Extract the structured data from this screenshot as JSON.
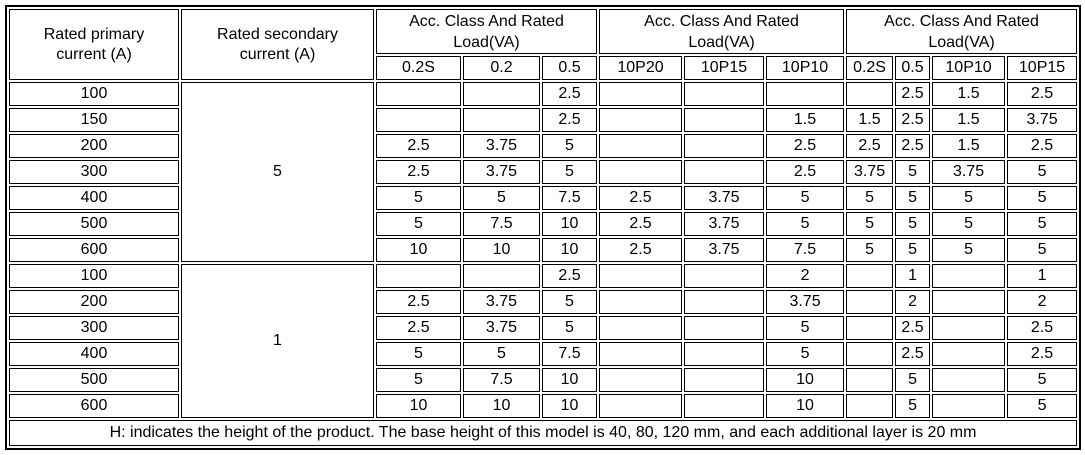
{
  "colors": {
    "border": "#000000",
    "text": "#000000",
    "background": "#ffffff"
  },
  "table": {
    "header": {
      "col_primary": "Rated primary current (A)",
      "col_secondary": "Rated secondary current (A)",
      "groups": [
        {
          "label": "Acc. Class And Rated Load(VA)",
          "subcols": [
            "0.2S",
            "0.2",
            "0.5"
          ]
        },
        {
          "label": "Acc. Class And Rated Load(VA)",
          "subcols": [
            "10P20",
            "10P15",
            "10P10"
          ]
        },
        {
          "label": "Acc. Class And Rated Load(VA)",
          "subcols": [
            "0.2S",
            "0.5",
            "10P10",
            "10P15"
          ]
        }
      ]
    },
    "sections": [
      {
        "secondary_current": "5",
        "rows": [
          {
            "primary": "100",
            "values": [
              "",
              "",
              "2.5",
              "",
              "",
              "",
              "",
              "2.5",
              "1.5",
              "2.5"
            ]
          },
          {
            "primary": "150",
            "values": [
              "",
              "",
              "2.5",
              "",
              "",
              "1.5",
              "1.5",
              "2.5",
              "1.5",
              "3.75"
            ]
          },
          {
            "primary": "200",
            "values": [
              "2.5",
              "3.75",
              "5",
              "",
              "",
              "2.5",
              "2.5",
              "2.5",
              "1.5",
              "2.5"
            ]
          },
          {
            "primary": "300",
            "values": [
              "2.5",
              "3.75",
              "5",
              "",
              "",
              "2.5",
              "3.75",
              "5",
              "3.75",
              "5"
            ]
          },
          {
            "primary": "400",
            "values": [
              "5",
              "5",
              "7.5",
              "2.5",
              "3.75",
              "5",
              "5",
              "5",
              "5",
              "5"
            ]
          },
          {
            "primary": "500",
            "values": [
              "5",
              "7.5",
              "10",
              "2.5",
              "3.75",
              "5",
              "5",
              "5",
              "5",
              "5"
            ]
          },
          {
            "primary": "600",
            "values": [
              "10",
              "10",
              "10",
              "2.5",
              "3.75",
              "7.5",
              "5",
              "5",
              "5",
              "5"
            ]
          }
        ]
      },
      {
        "secondary_current": "1",
        "rows": [
          {
            "primary": "100",
            "values": [
              "",
              "",
              "2.5",
              "",
              "",
              "2",
              "",
              "1",
              "",
              "1"
            ]
          },
          {
            "primary": "200",
            "values": [
              "2.5",
              "3.75",
              "5",
              "",
              "",
              "3.75",
              "",
              "2",
              "",
              "2"
            ]
          },
          {
            "primary": "300",
            "values": [
              "2.5",
              "3.75",
              "5",
              "",
              "",
              "5",
              "",
              "2.5",
              "",
              "2.5"
            ]
          },
          {
            "primary": "400",
            "values": [
              "5",
              "5",
              "7.5",
              "",
              "",
              "5",
              "",
              "2.5",
              "",
              "2.5"
            ]
          },
          {
            "primary": "500",
            "values": [
              "5",
              "7.5",
              "10",
              "",
              "",
              "10",
              "",
              "5",
              "",
              "5"
            ]
          },
          {
            "primary": "600",
            "values": [
              "10",
              "10",
              "10",
              "",
              "",
              "10",
              "",
              "5",
              "",
              "5"
            ]
          }
        ]
      }
    ],
    "footer_note": "H: indicates the height of the product. The base height of this model is 40, 80, 120 mm, and each additional layer is 20 mm"
  }
}
